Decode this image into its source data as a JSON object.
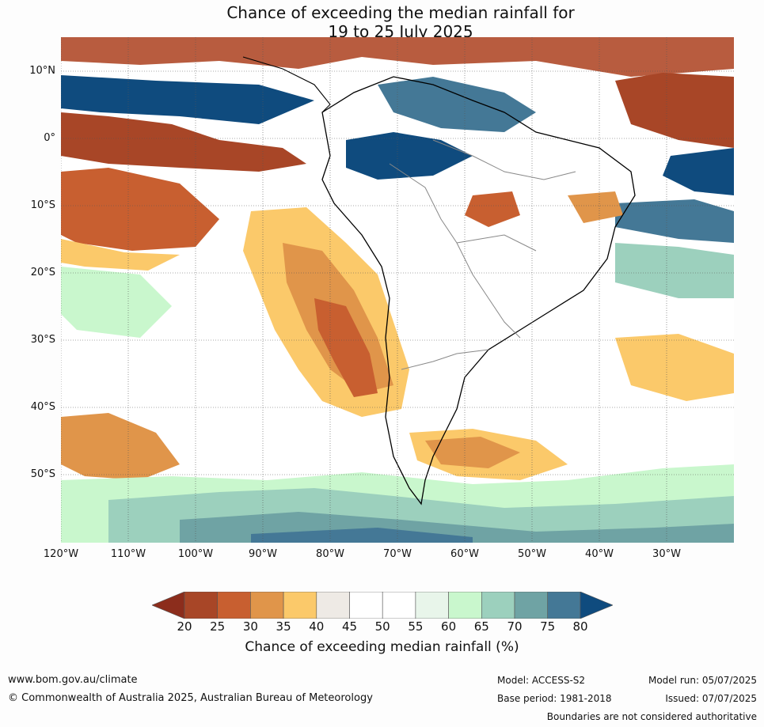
{
  "title": {
    "line1": "Chance of exceeding the median rainfall for",
    "line2": "19 to 25 July 2025"
  },
  "map": {
    "lat_labels": [
      "10°N",
      "0°",
      "10°S",
      "20°S",
      "30°S",
      "40°S",
      "50°S"
    ],
    "lon_labels": [
      "120°W",
      "110°W",
      "100°W",
      "90°W",
      "80°W",
      "70°W",
      "60°W",
      "50°W",
      "40°W",
      "30°W"
    ]
  },
  "colorbar": {
    "label": "Chance of exceeding median rainfall (%)",
    "ticks": [
      "20",
      "25",
      "30",
      "35",
      "40",
      "45",
      "50",
      "55",
      "60",
      "65",
      "70",
      "75",
      "80"
    ],
    "colors": {
      "below20": "#8c2d1c",
      "c20_25": "#a84627",
      "c25_30": "#c85f30",
      "c30_35": "#e0954a",
      "c35_40": "#fbc96a",
      "c40_45": "#eeeae5",
      "c45_50": "#ffffff",
      "c50_55": "#ffffff",
      "c55_60": "#e8f5ea",
      "c60_65": "#c9f7cd",
      "c65_70": "#9cd0bd",
      "c70_75": "#6fa3a4",
      "c75_80": "#447896",
      "above80": "#0f4b7e"
    }
  },
  "footer": {
    "website": "www.bom.gov.au/climate",
    "copyright": "© Commonwealth of Australia 2025, Australian Bureau of Meteorology",
    "model": "Model: ACCESS-S2",
    "base_period": "Base period: 1981-2018",
    "model_run": "Model run: 05/07/2025",
    "issued": "Issued: 07/07/2025",
    "disclaimer": "Boundaries are not considered authoritative"
  }
}
